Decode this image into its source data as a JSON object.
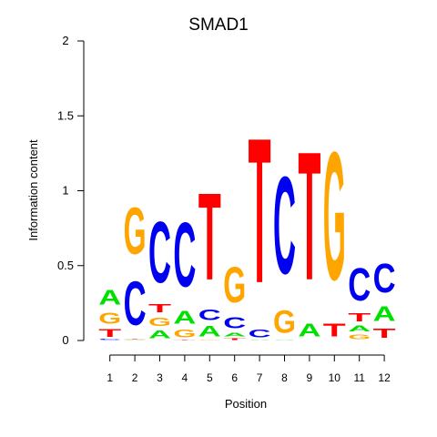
{
  "chart_data": {
    "type": "sequence-logo",
    "title": "SMAD1",
    "xlabel": "Position",
    "ylabel": "Information content",
    "ylim": [
      0,
      2
    ],
    "y_ticks": [
      "0",
      "0.5",
      "1",
      "1.5",
      "2"
    ],
    "y_tick_values": [
      0,
      0.5,
      1,
      1.5,
      2
    ],
    "positions": [
      "1",
      "2",
      "3",
      "4",
      "5",
      "6",
      "7",
      "8",
      "9",
      "10",
      "11",
      "12"
    ],
    "colors": {
      "A": "#00e000",
      "C": "#0000f0",
      "G": "#ffa500",
      "T": "#ff0000"
    },
    "stacks": [
      [
        {
          "base": "C",
          "height": 0.01
        },
        {
          "base": "T",
          "height": 0.08
        },
        {
          "base": "G",
          "height": 0.12
        },
        {
          "base": "A",
          "height": 0.16
        }
      ],
      [
        {
          "base": "A",
          "height": 0.005
        },
        {
          "base": "T",
          "height": 0.005
        },
        {
          "base": "C",
          "height": 0.47
        },
        {
          "base": "G",
          "height": 0.5
        }
      ],
      [
        {
          "base": "A",
          "height": 0.08
        },
        {
          "base": "G",
          "height": 0.09
        },
        {
          "base": "T",
          "height": 0.09
        },
        {
          "base": "C",
          "height": 0.65
        }
      ],
      [
        {
          "base": "T",
          "height": 0.005
        },
        {
          "base": "G",
          "height": 0.08
        },
        {
          "base": "A",
          "height": 0.14
        },
        {
          "base": "C",
          "height": 0.69
        }
      ],
      [
        {
          "base": "G",
          "height": 0.005
        },
        {
          "base": "A",
          "height": 0.11
        },
        {
          "base": "C",
          "height": 0.11
        },
        {
          "base": "T",
          "height": 0.93
        }
      ],
      [
        {
          "base": "T",
          "height": 0.02
        },
        {
          "base": "A",
          "height": 0.04
        },
        {
          "base": "C",
          "height": 0.12
        },
        {
          "base": "G",
          "height": 0.38
        }
      ],
      [
        {
          "base": "A",
          "height": 0.005
        },
        {
          "base": "C",
          "height": 0.08
        },
        {
          "base": "T",
          "height": 1.55
        }
      ],
      [
        {
          "base": "A",
          "height": 0.005
        },
        {
          "base": "G",
          "height": 0.24
        },
        {
          "base": "C",
          "height": 1.04
        }
      ],
      [
        {
          "base": "A",
          "height": 0.14
        },
        {
          "base": "T",
          "height": 1.37
        }
      ],
      [
        {
          "base": "T",
          "height": 0.14
        },
        {
          "base": "G",
          "height": 1.37
        }
      ],
      [
        {
          "base": "G",
          "height": 0.05
        },
        {
          "base": "A",
          "height": 0.06
        },
        {
          "base": "T",
          "height": 0.09
        },
        {
          "base": "C",
          "height": 0.35
        }
      ],
      [
        {
          "base": "T",
          "height": 0.1
        },
        {
          "base": "A",
          "height": 0.16
        },
        {
          "base": "C",
          "height": 0.31
        }
      ]
    ]
  }
}
